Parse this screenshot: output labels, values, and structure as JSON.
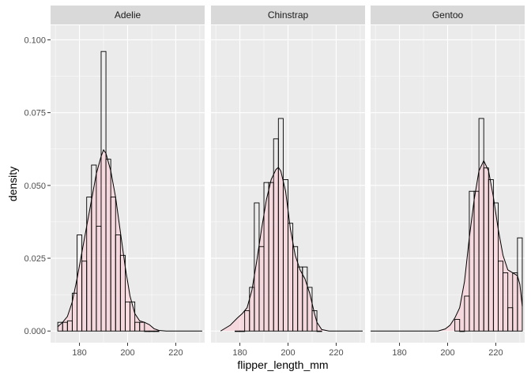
{
  "chart_data": {
    "type": "histogram",
    "title": "",
    "xlabel": "flipper_length_mm",
    "ylabel": "density",
    "xlim": [
      168,
      232
    ],
    "ylim": [
      -0.004,
      0.105
    ],
    "x_ticks": [
      180,
      200,
      220
    ],
    "y_ticks": [
      0.0,
      0.025,
      0.05,
      0.075,
      0.1
    ],
    "y_tick_labels": [
      "0.000",
      "0.025",
      "0.050",
      "0.075",
      "0.100"
    ],
    "x_tick_labels": [
      "180",
      "200",
      "220"
    ],
    "bin_width": 2,
    "grid": true,
    "colors": {
      "panel_bg": "#ebebeb",
      "grid": "#ffffff",
      "strip_bg": "#d9d9d9",
      "bar_outline": "#000000",
      "density_fill": "#ffc0cb",
      "density_line": "#000000"
    },
    "panels": [
      {
        "name": "Adelie",
        "bins": [
          {
            "x0": 171,
            "density": 0.003
          },
          {
            "x0": 173,
            "density": 0.003
          },
          {
            "x0": 175,
            "density": 0.0035
          },
          {
            "x0": 177,
            "density": 0.013
          },
          {
            "x0": 179,
            "density": 0.033
          },
          {
            "x0": 181,
            "density": 0.024
          },
          {
            "x0": 183,
            "density": 0.046
          },
          {
            "x0": 185,
            "density": 0.057
          },
          {
            "x0": 187,
            "density": 0.036
          },
          {
            "x0": 189,
            "density": 0.096
          },
          {
            "x0": 191,
            "density": 0.059
          },
          {
            "x0": 193,
            "density": 0.046
          },
          {
            "x0": 195,
            "density": 0.033
          },
          {
            "x0": 197,
            "density": 0.026
          },
          {
            "x0": 199,
            "density": 0.01
          },
          {
            "x0": 201,
            "density": 0.01
          },
          {
            "x0": 203,
            "density": 0.003
          },
          {
            "x0": 205,
            "density": 0.003
          },
          {
            "x0": 207,
            "density": 0.0
          },
          {
            "x0": 209,
            "density": 0.0
          },
          {
            "x0": 211,
            "density": 0.0
          }
        ],
        "density_curve": [
          [
            171,
            0.0015
          ],
          [
            173,
            0.003
          ],
          [
            175,
            0.005
          ],
          [
            177,
            0.01
          ],
          [
            179,
            0.018
          ],
          [
            181,
            0.027
          ],
          [
            183,
            0.036
          ],
          [
            185,
            0.045
          ],
          [
            187,
            0.054
          ],
          [
            189,
            0.06
          ],
          [
            190,
            0.0622
          ],
          [
            191,
            0.061
          ],
          [
            193,
            0.055
          ],
          [
            195,
            0.046
          ],
          [
            197,
            0.034
          ],
          [
            199,
            0.022
          ],
          [
            201,
            0.012
          ],
          [
            203,
            0.006
          ],
          [
            205,
            0.0035
          ],
          [
            207,
            0.003
          ],
          [
            209,
            0.0022
          ],
          [
            211,
            0.0008
          ],
          [
            213,
            0.0002
          ],
          [
            216,
            0.0
          ],
          [
            231,
            0.0
          ]
        ]
      },
      {
        "name": "Chinstrap",
        "bins": [
          {
            "x0": 178,
            "density": 0.0
          },
          {
            "x0": 180,
            "density": 0.0
          },
          {
            "x0": 182,
            "density": 0.007
          },
          {
            "x0": 184,
            "density": 0.015
          },
          {
            "x0": 186,
            "density": 0.044
          },
          {
            "x0": 188,
            "density": 0.029
          },
          {
            "x0": 190,
            "density": 0.051
          },
          {
            "x0": 192,
            "density": 0.051
          },
          {
            "x0": 194,
            "density": 0.066
          },
          {
            "x0": 196,
            "density": 0.073
          },
          {
            "x0": 198,
            "density": 0.052
          },
          {
            "x0": 200,
            "density": 0.037
          },
          {
            "x0": 202,
            "density": 0.029
          },
          {
            "x0": 204,
            "density": 0.022
          },
          {
            "x0": 206,
            "density": 0.022
          },
          {
            "x0": 208,
            "density": 0.015
          },
          {
            "x0": 210,
            "density": 0.007
          },
          {
            "x0": 212,
            "density": 0.0
          }
        ],
        "density_curve": [
          [
            172,
            0.0
          ],
          [
            176,
            0.002
          ],
          [
            179,
            0.0045
          ],
          [
            181,
            0.006
          ],
          [
            183,
            0.008
          ],
          [
            185,
            0.014
          ],
          [
            187,
            0.024
          ],
          [
            189,
            0.035
          ],
          [
            191,
            0.045
          ],
          [
            193,
            0.052
          ],
          [
            195,
            0.0555
          ],
          [
            196,
            0.0562
          ],
          [
            197,
            0.055
          ],
          [
            199,
            0.048
          ],
          [
            201,
            0.035
          ],
          [
            203,
            0.026
          ],
          [
            205,
            0.021
          ],
          [
            207,
            0.018
          ],
          [
            209,
            0.013
          ],
          [
            211,
            0.006
          ],
          [
            212,
            0.003
          ],
          [
            214,
            0.0005
          ],
          [
            217,
            0.0
          ],
          [
            231,
            0.0
          ]
        ]
      },
      {
        "name": "Gentoo",
        "bins": [
          {
            "x0": 203,
            "density": 0.004
          },
          {
            "x0": 205,
            "density": 0.0
          },
          {
            "x0": 207,
            "density": 0.012
          },
          {
            "x0": 209,
            "density": 0.048
          },
          {
            "x0": 211,
            "density": 0.048
          },
          {
            "x0": 213,
            "density": 0.073
          },
          {
            "x0": 215,
            "density": 0.056
          },
          {
            "x0": 217,
            "density": 0.052
          },
          {
            "x0": 219,
            "density": 0.044
          },
          {
            "x0": 221,
            "density": 0.024
          },
          {
            "x0": 223,
            "density": 0.02
          },
          {
            "x0": 225,
            "density": 0.008
          },
          {
            "x0": 227,
            "density": 0.02
          },
          {
            "x0": 229,
            "density": 0.032
          }
        ],
        "density_curve": [
          [
            168,
            0.0
          ],
          [
            196,
            0.0
          ],
          [
            199,
            0.0007
          ],
          [
            201,
            0.002
          ],
          [
            203,
            0.0045
          ],
          [
            205,
            0.008
          ],
          [
            207,
            0.017
          ],
          [
            209,
            0.032
          ],
          [
            211,
            0.045
          ],
          [
            213,
            0.055
          ],
          [
            215,
            0.0585
          ],
          [
            217,
            0.055
          ],
          [
            219,
            0.046
          ],
          [
            221,
            0.035
          ],
          [
            223,
            0.026
          ],
          [
            225,
            0.021
          ],
          [
            227,
            0.02
          ],
          [
            229,
            0.019
          ],
          [
            230,
            0.016
          ],
          [
            231,
            0.0085
          ]
        ]
      }
    ]
  }
}
